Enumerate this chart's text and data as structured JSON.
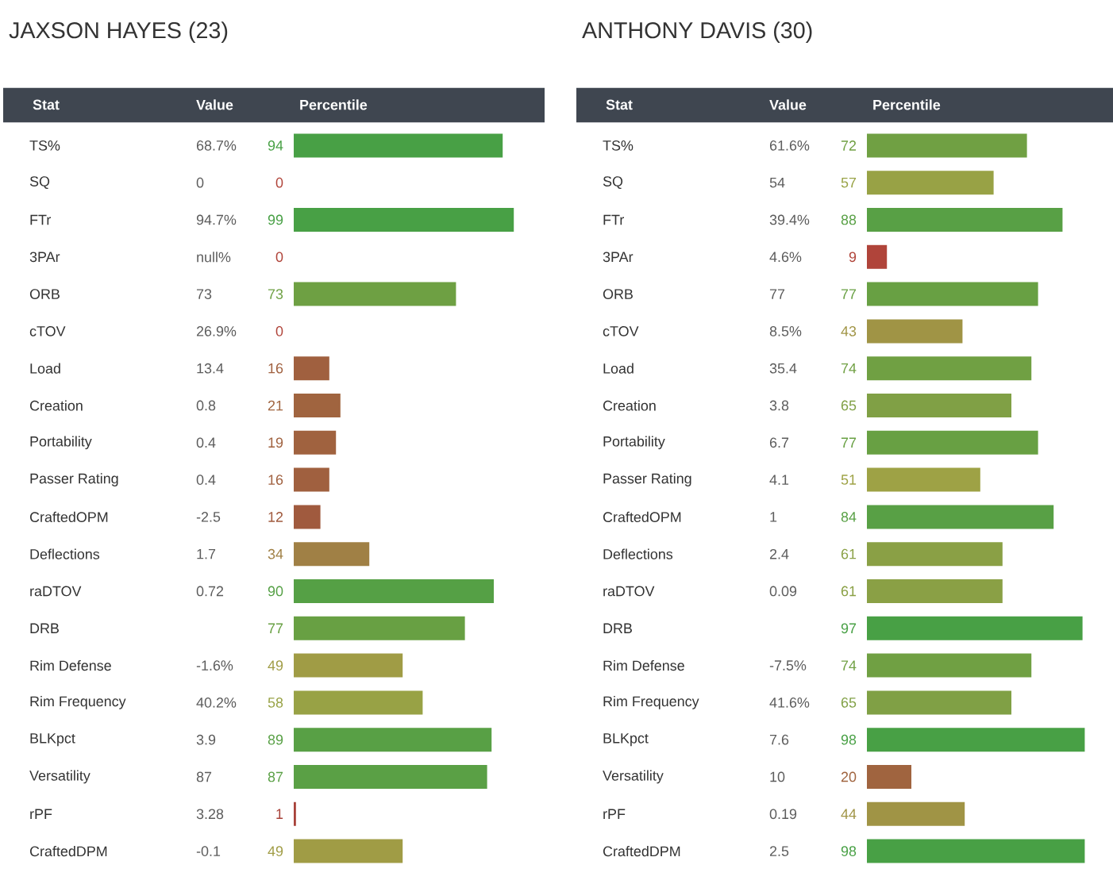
{
  "chart_data": [
    {
      "type": "bar",
      "orientation": "horizontal",
      "title": "JAXSON HAYES (23)",
      "ylabel": "Stat",
      "xlabel": "Percentile",
      "xlim": [
        0,
        100
      ],
      "data_labels": true,
      "categories": [
        "TS%",
        "SQ",
        "FTr",
        "3PAr",
        "ORB",
        "cTOV",
        "Load",
        "Creation",
        "Portability",
        "Passer Rating",
        "CraftedOPM",
        "Deflections",
        "raDTOV",
        "DRB",
        "Rim Defense",
        "Rim Frequency",
        "BLKpct",
        "Versatility",
        "rPF",
        "CraftedDPM"
      ],
      "values": [
        94,
        0,
        99,
        0,
        73,
        0,
        16,
        21,
        19,
        16,
        12,
        34,
        90,
        77,
        49,
        58,
        89,
        87,
        1,
        49
      ],
      "colors": [
        "#48a045",
        "#b0443a",
        "#48a045",
        "#b0443a",
        "#6ea043",
        "#b0443a",
        "#a0603f",
        "#a0643f",
        "#a0623f",
        "#a0603f",
        "#a05a3e",
        "#a08045",
        "#55a045",
        "#68a043",
        "#a09c45",
        "#98a245",
        "#58a045",
        "#5aa045",
        "#a8423a",
        "#a09c45"
      ],
      "annotations": [
        "Value",
        "68.7%",
        "0",
        "94.7%",
        "null%",
        "73",
        "26.9%",
        "13.4",
        "0.8",
        "0.4",
        "0.4",
        "-2.5",
        "1.7",
        "0.72",
        null,
        "-1.6%",
        "40.2%",
        "3.9",
        "87",
        "3.28",
        "-0.1"
      ]
    },
    {
      "type": "bar",
      "orientation": "horizontal",
      "title": "ANTHONY DAVIS (30)",
      "ylabel": "Stat",
      "xlabel": "Percentile",
      "xlim": [
        0,
        100
      ],
      "data_labels": true,
      "categories": [
        "TS%",
        "SQ",
        "FTr",
        "3PAr",
        "ORB",
        "cTOV",
        "Load",
        "Creation",
        "Portability",
        "Passer Rating",
        "CraftedOPM",
        "Deflections",
        "raDTOV",
        "DRB",
        "Rim Defense",
        "Rim Frequency",
        "BLKpct",
        "Versatility",
        "rPF",
        "CraftedDPM"
      ],
      "values": [
        72,
        57,
        88,
        9,
        77,
        43,
        74,
        65,
        77,
        51,
        84,
        61,
        61,
        97,
        74,
        65,
        98,
        20,
        44,
        98
      ],
      "colors": [
        "#70a043",
        "#98a245",
        "#58a045",
        "#b0443a",
        "#68a043",
        "#a09445",
        "#70a043",
        "#80a045",
        "#68a043",
        "#9ea245",
        "#58a045",
        "#8aa045",
        "#8aa045",
        "#48a045",
        "#70a043",
        "#80a045",
        "#48a045",
        "#a0643f",
        "#a09445",
        "#48a045"
      ],
      "annotations": [
        "Value",
        "61.6%",
        "54",
        "39.4%",
        "4.6%",
        "77",
        "8.5%",
        "35.4",
        "3.8",
        "6.7",
        "4.1",
        "1",
        "2.4",
        "0.09",
        null,
        "-7.5%",
        "41.6%",
        "7.6",
        "10",
        "0.19",
        "2.5"
      ]
    }
  ]
}
